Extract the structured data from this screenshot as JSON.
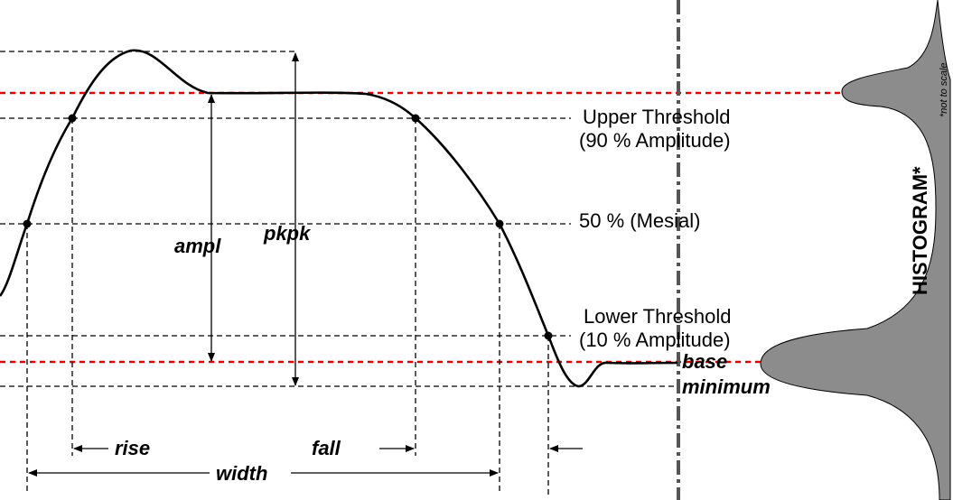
{
  "labels": {
    "upper_threshold": "Upper Threshold",
    "upper_threshold_pct": "(90 % Amplitude)",
    "mesial": "50 % (Mesial)",
    "lower_threshold": "Lower Threshold",
    "lower_threshold_pct": "(10 % Amplitude)",
    "base": "base",
    "minimum": "minimum",
    "ampl": "ampl",
    "pkpk": "pkpk",
    "rise": "rise",
    "fall": "fall",
    "width": "width",
    "histogram": "HISTOGRAM*",
    "not_to_scale": "*not to scale"
  },
  "colors": {
    "waveform": "#000000",
    "reference_levels": "#e00000",
    "histogram_fill": "#8c8c8c",
    "divider": "#555555"
  }
}
